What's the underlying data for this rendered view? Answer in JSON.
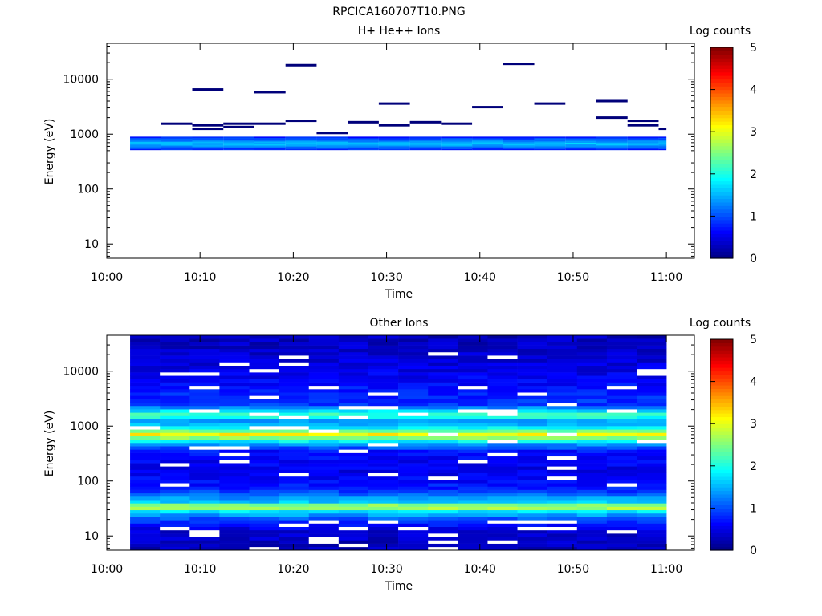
{
  "figure": {
    "title": "RPCICA160707T10.PNG"
  },
  "chart_data": [
    {
      "type": "heatmap",
      "title": "H+ He++ Ions",
      "xlabel": "Time",
      "ylabel": "Energy (eV)",
      "yscale": "log",
      "xlim": [
        "10:00",
        "11:03"
      ],
      "ylim": [
        5.5,
        45000
      ],
      "xticks": [
        "10:00",
        "10:10",
        "10:20",
        "10:30",
        "10:40",
        "10:50",
        "11:00"
      ],
      "yticks": [
        "10",
        "100",
        "1000",
        "10000"
      ],
      "time_bins": [
        "10:02:30-10:05:50",
        "10:05:50-10:09:10",
        "10:09:10-10:12:30",
        "10:12:30-10:15:50",
        "10:15:50-10:19:10",
        "10:19:10-10:22:30",
        "10:22:30-10:25:50",
        "10:25:50-10:29:10",
        "10:29:10-10:32:30",
        "10:32:30-10:35:50",
        "10:35:50-10:39:10",
        "10:39:10-10:42:30",
        "10:42:30-10:45:50",
        "10:45:50-10:49:10",
        "10:49:10-10:52:30",
        "10:52:30-10:55:50",
        "10:55:50-10:59:10",
        "10:59:10-11:00:00"
      ],
      "spikes_eV": [
        [],
        [
          1550
        ],
        [
          1250,
          1450,
          6500
        ],
        [
          1350,
          1550
        ],
        [
          1550,
          5800
        ],
        [
          1750,
          18000
        ],
        [
          1050
        ],
        [
          1650
        ],
        [
          1450,
          3600
        ],
        [
          1650
        ],
        [
          1550
        ],
        [
          3100
        ],
        [
          19000
        ],
        [
          3600
        ],
        [],
        [
          2000,
          4000
        ],
        [
          1450,
          1750
        ],
        [
          1250
        ]
      ],
      "band_eV": [
        520,
        900
      ],
      "colorbar": {
        "label": "Log counts",
        "min": 0,
        "max": 5,
        "ticks": [
          "0",
          "1",
          "2",
          "3",
          "4",
          "5"
        ]
      }
    },
    {
      "type": "heatmap",
      "title": "Other Ions",
      "xlabel": "Time",
      "ylabel": "Energy (eV)",
      "yscale": "log",
      "xlim": [
        "10:00",
        "11:03"
      ],
      "ylim": [
        5.5,
        45000
      ],
      "xticks": [
        "10:00",
        "10:10",
        "10:20",
        "10:30",
        "10:40",
        "10:50",
        "11:00"
      ],
      "yticks": [
        "10",
        "100",
        "1000",
        "10000"
      ],
      "energy_profile_log_counts": [
        {
          "eV": 7,
          "value": 0.3
        },
        {
          "eV": 12,
          "value": 0.4
        },
        {
          "eV": 20,
          "value": 0.9
        },
        {
          "eV": 28,
          "value": 1.8
        },
        {
          "eV": 34,
          "value": 3.1
        },
        {
          "eV": 42,
          "value": 1.6
        },
        {
          "eV": 70,
          "value": 0.8
        },
        {
          "eV": 150,
          "value": 0.5
        },
        {
          "eV": 350,
          "value": 0.7
        },
        {
          "eV": 500,
          "value": 1.5
        },
        {
          "eV": 700,
          "value": 3.2
        },
        {
          "eV": 900,
          "value": 1.9
        },
        {
          "eV": 1200,
          "value": 1.3
        },
        {
          "eV": 1550,
          "value": 2.3
        },
        {
          "eV": 2500,
          "value": 0.9
        },
        {
          "eV": 10000,
          "value": 0.5
        },
        {
          "eV": 40000,
          "value": 0.3
        }
      ],
      "colorbar": {
        "label": "Log counts",
        "min": 0,
        "max": 5,
        "ticks": [
          "0",
          "1",
          "2",
          "3",
          "4",
          "5"
        ]
      }
    }
  ]
}
